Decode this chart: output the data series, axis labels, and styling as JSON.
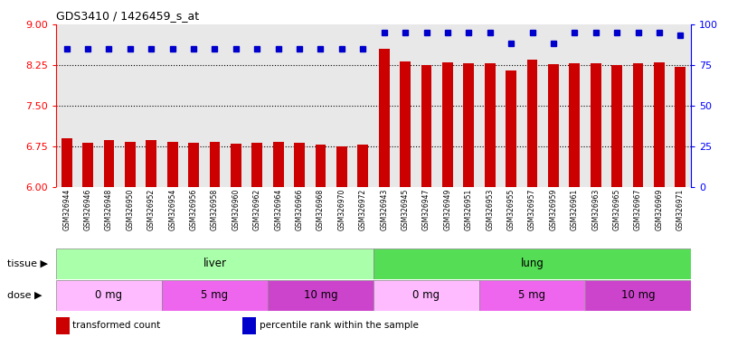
{
  "title": "GDS3410 / 1426459_s_at",
  "samples": [
    "GSM326944",
    "GSM326946",
    "GSM326948",
    "GSM326950",
    "GSM326952",
    "GSM326954",
    "GSM326956",
    "GSM326958",
    "GSM326960",
    "GSM326962",
    "GSM326964",
    "GSM326966",
    "GSM326968",
    "GSM326970",
    "GSM326972",
    "GSM326943",
    "GSM326945",
    "GSM326947",
    "GSM326949",
    "GSM326951",
    "GSM326953",
    "GSM326955",
    "GSM326957",
    "GSM326959",
    "GSM326961",
    "GSM326963",
    "GSM326965",
    "GSM326967",
    "GSM326969",
    "GSM326971"
  ],
  "transformed_count": [
    6.9,
    6.82,
    6.87,
    6.83,
    6.87,
    6.83,
    6.82,
    6.83,
    6.8,
    6.82,
    6.83,
    6.82,
    6.79,
    6.75,
    6.78,
    8.55,
    8.32,
    8.25,
    8.3,
    8.28,
    8.28,
    8.15,
    8.35,
    8.27,
    8.28,
    8.28,
    8.25,
    8.28,
    8.3,
    8.22
  ],
  "percentile_rank": [
    85,
    85,
    85,
    85,
    85,
    85,
    85,
    85,
    85,
    85,
    85,
    85,
    85,
    85,
    85,
    95,
    95,
    95,
    95,
    95,
    95,
    88,
    95,
    88,
    95,
    95,
    95,
    95,
    95,
    93
  ],
  "bar_color": "#cc0000",
  "dot_color": "#0000cc",
  "ylim_left": [
    6,
    9
  ],
  "ylim_right": [
    0,
    100
  ],
  "yticks_left": [
    6,
    6.75,
    7.5,
    8.25,
    9
  ],
  "yticks_right": [
    0,
    25,
    50,
    75,
    100
  ],
  "hlines": [
    6.75,
    7.5,
    8.25
  ],
  "tissue_groups": [
    {
      "label": "liver",
      "start": 0,
      "end": 15,
      "color": "#aaffaa"
    },
    {
      "label": "lung",
      "start": 15,
      "end": 30,
      "color": "#55dd55"
    }
  ],
  "dose_groups": [
    {
      "label": "0 mg",
      "start": 0,
      "end": 5,
      "color": "#ffbbff"
    },
    {
      "label": "5 mg",
      "start": 5,
      "end": 10,
      "color": "#ee66ee"
    },
    {
      "label": "10 mg",
      "start": 10,
      "end": 15,
      "color": "#cc44cc"
    },
    {
      "label": "0 mg",
      "start": 15,
      "end": 20,
      "color": "#ffbbff"
    },
    {
      "label": "5 mg",
      "start": 20,
      "end": 25,
      "color": "#ee66ee"
    },
    {
      "label": "10 mg",
      "start": 25,
      "end": 30,
      "color": "#cc44cc"
    }
  ],
  "legend_items": [
    {
      "label": "transformed count",
      "color": "#cc0000"
    },
    {
      "label": "percentile rank within the sample",
      "color": "#0000cc"
    }
  ],
  "tissue_label": "tissue",
  "dose_label": "dose",
  "plot_bg": "#e8e8e8",
  "tick_area_bg": "#d8d8d8"
}
